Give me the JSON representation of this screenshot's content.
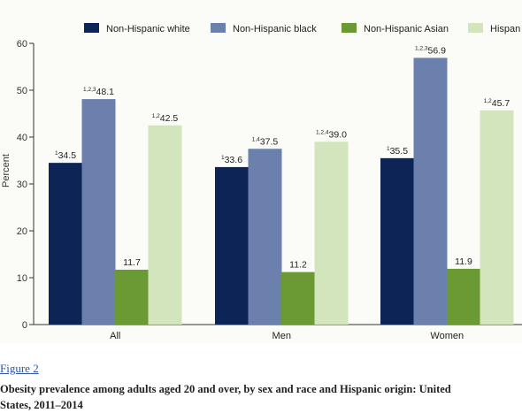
{
  "figure": {
    "link_text": "Figure 2",
    "caption_line_1": "Obesity prevalence among adults aged 20 and over, by sex and race and Hispanic origin: United",
    "caption_line_2": "States, 2011–2014"
  },
  "chart_data": {
    "type": "bar",
    "title": "",
    "xlabel": "",
    "ylabel": "Percent",
    "ylim": [
      0,
      60
    ],
    "yticks": [
      0,
      10,
      20,
      30,
      40,
      50,
      60
    ],
    "grid": false,
    "legend_position": "top",
    "categories": [
      "All",
      "Men",
      "Women"
    ],
    "series": [
      {
        "name": "Non-Hispanic white",
        "color": "#0d2456",
        "values": [
          34.5,
          33.6,
          35.5
        ],
        "superscripts": [
          "1",
          "1",
          "1"
        ]
      },
      {
        "name": "Non-Hispanic black",
        "color": "#6b80ad",
        "values": [
          48.1,
          37.5,
          56.9
        ],
        "superscripts": [
          "1,2,3",
          "1,4",
          "1,2,3"
        ]
      },
      {
        "name": "Non-Hispanic Asian",
        "color": "#6b9934",
        "values": [
          11.7,
          11.2,
          11.9
        ],
        "superscripts": [
          "",
          "",
          ""
        ]
      },
      {
        "name": "Hispanic",
        "color": "#d3e5bd",
        "values": [
          42.5,
          39.0,
          45.7
        ],
        "superscripts": [
          "1,2",
          "1,2,4",
          "1,2"
        ]
      }
    ],
    "legend_labels": [
      "Non-Hispanic white",
      "Non-Hispanic black",
      "Non-Hispanic Asian",
      "Hispan"
    ]
  }
}
